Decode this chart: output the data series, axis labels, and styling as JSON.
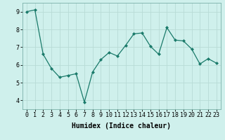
{
  "x": [
    0,
    1,
    2,
    3,
    4,
    5,
    6,
    7,
    8,
    9,
    10,
    11,
    12,
    13,
    14,
    15,
    16,
    17,
    18,
    19,
    20,
    21,
    22,
    23
  ],
  "y": [
    9.0,
    9.1,
    6.6,
    5.8,
    5.3,
    5.4,
    5.5,
    3.9,
    5.6,
    6.3,
    6.7,
    6.5,
    7.1,
    7.75,
    7.8,
    7.05,
    6.6,
    8.1,
    7.4,
    7.35,
    6.9,
    6.05,
    6.35,
    6.1
  ],
  "line_color": "#1a7a6a",
  "marker": "D",
  "marker_size": 2.0,
  "line_width": 0.9,
  "bg_color": "#cff0ec",
  "grid_color": "#b8dbd6",
  "xlabel": "Humidex (Indice chaleur)",
  "xlabel_fontsize": 7,
  "tick_fontsize": 6,
  "ylim": [
    3.5,
    9.5
  ],
  "xlim": [
    -0.5,
    23.5
  ],
  "yticks": [
    4,
    5,
    6,
    7,
    8,
    9
  ],
  "xticks": [
    0,
    1,
    2,
    3,
    4,
    5,
    6,
    7,
    8,
    9,
    10,
    11,
    12,
    13,
    14,
    15,
    16,
    17,
    18,
    19,
    20,
    21,
    22,
    23
  ]
}
